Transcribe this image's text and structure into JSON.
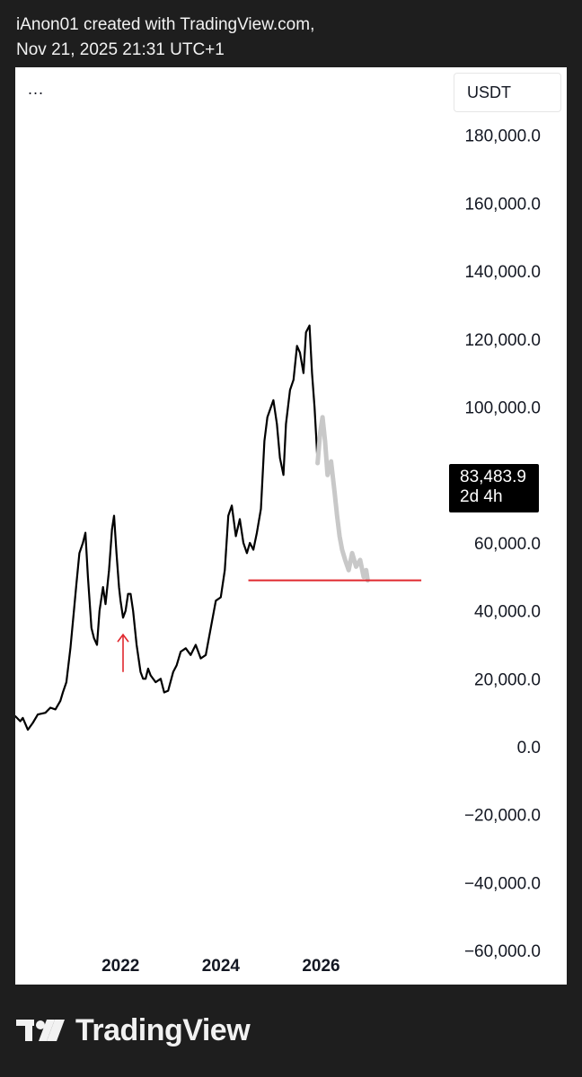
{
  "header": {
    "line1": "iAnon01 created with TradingView.com,",
    "line2": "Nov 21, 2025 21:31 UTC+1"
  },
  "toolbar": {
    "menu_label": "...",
    "currency": "USDT"
  },
  "price_badge": {
    "value": "83,483.9",
    "timer": "2d 4h"
  },
  "footer": {
    "brand": "TradingView",
    "logo_icon": "tradingview-logo-icon"
  },
  "colors": {
    "price_line": "#000000",
    "projection": "#c8c8c8",
    "support_line": "#e0282e",
    "arrow": "#e0282e"
  },
  "chart_data": {
    "type": "line",
    "ylim": [
      -70000,
      200000
    ],
    "y_ticks": [
      {
        "value": 180000,
        "label": "180,000.0"
      },
      {
        "value": 160000,
        "label": "160,000.0"
      },
      {
        "value": 140000,
        "label": "140,000.0"
      },
      {
        "value": 120000,
        "label": "120,000.0"
      },
      {
        "value": 100000,
        "label": "100,000.0"
      },
      {
        "value": 60000,
        "label": "60,000.0"
      },
      {
        "value": 40000,
        "label": "40,000.0"
      },
      {
        "value": 20000,
        "label": "20,000.0"
      },
      {
        "value": 0,
        "label": "0.0"
      },
      {
        "value": -20000,
        "label": "−20,000.0"
      },
      {
        "value": -40000,
        "label": "−40,000.0"
      },
      {
        "value": -60000,
        "label": "−60,000.0"
      }
    ],
    "x_ticks": [
      {
        "value": 2022.0,
        "label": "2022"
      },
      {
        "value": 2024.0,
        "label": "2024"
      },
      {
        "value": 2026.0,
        "label": "2026"
      }
    ],
    "xlim": [
      2019.9,
      2028.5
    ],
    "series": [
      {
        "values": [
          [
            2019.9,
            9000
          ],
          [
            2020.0,
            7500
          ],
          [
            2020.05,
            8500
          ],
          [
            2020.15,
            5000
          ],
          [
            2020.25,
            7000
          ],
          [
            2020.35,
            9500
          ],
          [
            2020.5,
            10000
          ],
          [
            2020.6,
            11500
          ],
          [
            2020.7,
            11000
          ],
          [
            2020.8,
            13500
          ],
          [
            2020.85,
            16000
          ],
          [
            2020.92,
            19000
          ],
          [
            2021.0,
            29000
          ],
          [
            2021.07,
            40000
          ],
          [
            2021.12,
            48000
          ],
          [
            2021.18,
            57000
          ],
          [
            2021.25,
            60000
          ],
          [
            2021.3,
            63000
          ],
          [
            2021.35,
            50000
          ],
          [
            2021.42,
            35000
          ],
          [
            2021.47,
            32000
          ],
          [
            2021.53,
            30000
          ],
          [
            2021.58,
            40000
          ],
          [
            2021.65,
            47000
          ],
          [
            2021.7,
            42000
          ],
          [
            2021.77,
            52000
          ],
          [
            2021.83,
            64000
          ],
          [
            2021.87,
            68000
          ],
          [
            2021.92,
            57000
          ],
          [
            2021.97,
            47000
          ],
          [
            2022.0,
            43000
          ],
          [
            2022.05,
            38000
          ],
          [
            2022.1,
            40000
          ],
          [
            2022.15,
            45000
          ],
          [
            2022.2,
            45000
          ],
          [
            2022.25,
            40000
          ],
          [
            2022.32,
            30000
          ],
          [
            2022.4,
            22000
          ],
          [
            2022.45,
            20000
          ],
          [
            2022.5,
            20000
          ],
          [
            2022.55,
            23000
          ],
          [
            2022.6,
            21000
          ],
          [
            2022.7,
            19000
          ],
          [
            2022.8,
            20000
          ],
          [
            2022.87,
            16000
          ],
          [
            2022.95,
            16500
          ],
          [
            2023.05,
            22000
          ],
          [
            2023.12,
            24000
          ],
          [
            2023.2,
            28000
          ],
          [
            2023.3,
            29000
          ],
          [
            2023.4,
            27000
          ],
          [
            2023.5,
            30000
          ],
          [
            2023.6,
            26000
          ],
          [
            2023.7,
            27000
          ],
          [
            2023.8,
            35000
          ],
          [
            2023.9,
            43000
          ],
          [
            2024.0,
            44000
          ],
          [
            2024.08,
            52000
          ],
          [
            2024.15,
            68000
          ],
          [
            2024.22,
            71000
          ],
          [
            2024.3,
            62000
          ],
          [
            2024.38,
            67000
          ],
          [
            2024.45,
            60000
          ],
          [
            2024.52,
            57000
          ],
          [
            2024.58,
            60000
          ],
          [
            2024.65,
            58000
          ],
          [
            2024.72,
            63000
          ],
          [
            2024.8,
            70000
          ],
          [
            2024.87,
            90000
          ],
          [
            2024.93,
            97000
          ],
          [
            2025.0,
            100000
          ],
          [
            2025.05,
            102000
          ],
          [
            2025.12,
            95000
          ],
          [
            2025.18,
            85000
          ],
          [
            2025.25,
            80000
          ],
          [
            2025.3,
            95000
          ],
          [
            2025.38,
            105000
          ],
          [
            2025.45,
            108000
          ],
          [
            2025.52,
            118000
          ],
          [
            2025.58,
            116000
          ],
          [
            2025.65,
            110000
          ],
          [
            2025.7,
            122000
          ],
          [
            2025.77,
            124000
          ],
          [
            2025.82,
            110000
          ],
          [
            2025.87,
            100000
          ],
          [
            2025.9,
            92000
          ],
          [
            2025.93,
            83500
          ]
        ]
      },
      {
        "values": [
          [
            2025.93,
            83500
          ],
          [
            2025.98,
            92000
          ],
          [
            2026.03,
            97000
          ],
          [
            2026.08,
            90000
          ],
          [
            2026.13,
            80000
          ],
          [
            2026.2,
            84000
          ],
          [
            2026.27,
            75000
          ],
          [
            2026.32,
            68000
          ],
          [
            2026.37,
            62000
          ],
          [
            2026.42,
            58000
          ],
          [
            2026.48,
            55000
          ],
          [
            2026.55,
            52000
          ],
          [
            2026.62,
            57000
          ],
          [
            2026.7,
            53000
          ],
          [
            2026.78,
            55000
          ],
          [
            2026.85,
            50000
          ],
          [
            2026.9,
            52000
          ],
          [
            2026.93,
            49000
          ]
        ]
      }
    ],
    "support_line": {
      "value": 49000,
      "from": 2024.55,
      "to": 2028.0
    },
    "arrow": {
      "x": 2022.05,
      "from": 22000,
      "to": 33000
    }
  }
}
